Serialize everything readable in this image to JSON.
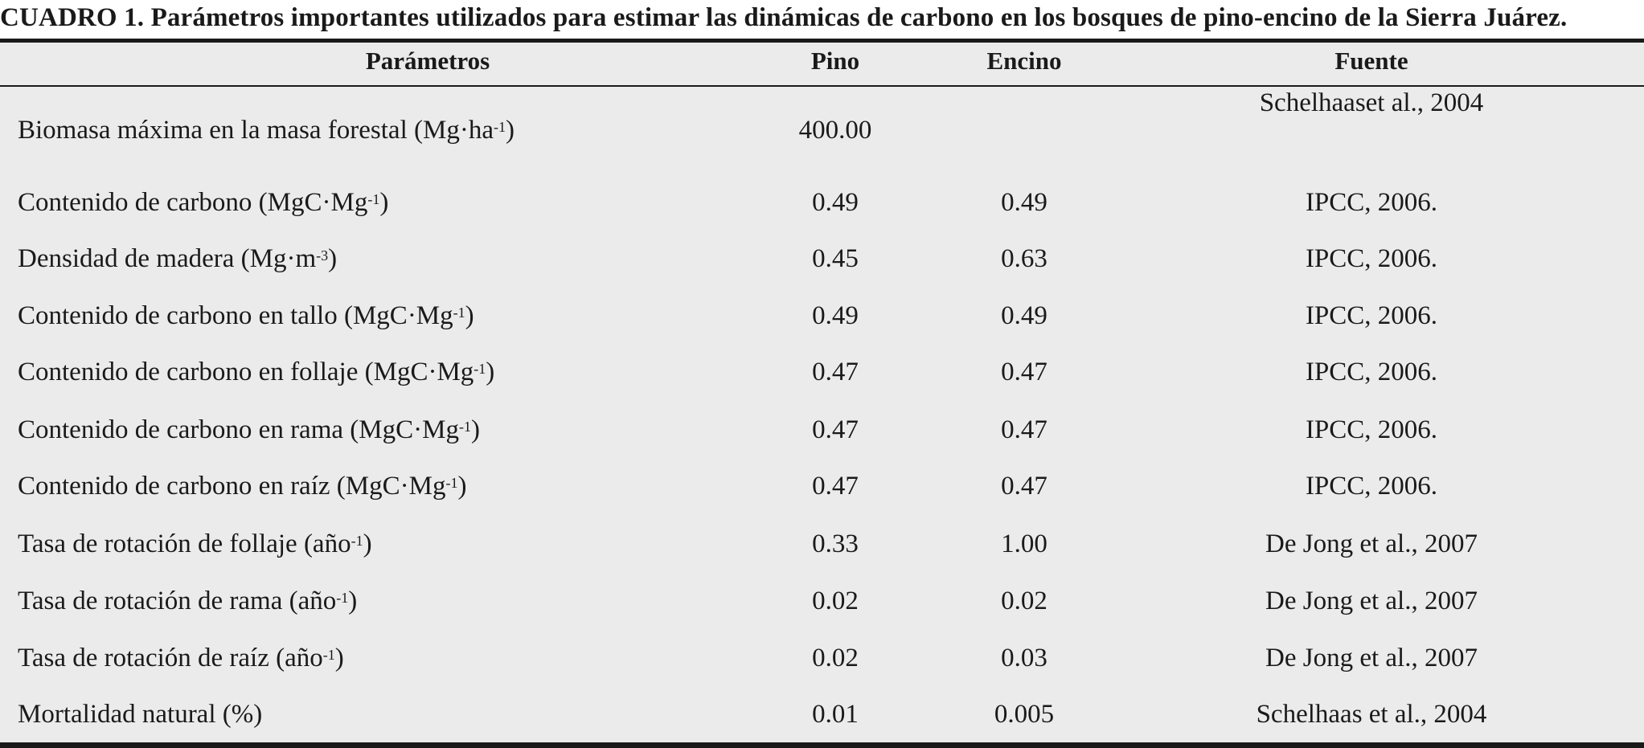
{
  "title": "CUADRO 1. Parámetros importantes utilizados para estimar las dinámicas de carbono en los bosques de pino-encino de la Sierra Juárez.",
  "headers": {
    "param": "Parámetros",
    "pino": "Pino",
    "encino": "Encino",
    "fuente": "Fuente"
  },
  "rows": [
    {
      "label": "Biomasa máxima en la masa forestal (Mg·ha",
      "sup": "-1",
      "tail": ")",
      "pino": "400.00",
      "encino": "",
      "fuente": "Schelhaaset al., 2004"
    },
    {
      "label": "Contenido de carbono (MgC·Mg",
      "sup": "-1",
      "tail": ")",
      "pino": "0.49",
      "encino": "0.49",
      "fuente": "IPCC, 2006."
    },
    {
      "label": "Densidad de madera (Mg·m",
      "sup": "-3",
      "tail": ")",
      "pino": "0.45",
      "encino": "0.63",
      "fuente": "IPCC, 2006."
    },
    {
      "label": "Contenido de carbono en tallo (MgC·Mg",
      "sup": "-1",
      "tail": ")",
      "pino": "0.49",
      "encino": "0.49",
      "fuente": "IPCC, 2006."
    },
    {
      "label": "Contenido de carbono en follaje (MgC·Mg",
      "sup": "-1",
      "tail": ")",
      "pino": "0.47",
      "encino": "0.47",
      "fuente": "IPCC, 2006."
    },
    {
      "label": "Contenido de carbono en rama (MgC·Mg",
      "sup": "-1",
      "tail": ")",
      "pino": "0.47",
      "encino": "0.47",
      "fuente": "IPCC, 2006."
    },
    {
      "label": "Contenido de carbono en raíz (MgC·Mg",
      "sup": "-1",
      "tail": ")",
      "pino": "0.47",
      "encino": "0.47",
      "fuente": "IPCC, 2006."
    },
    {
      "label": "Tasa de rotación de follaje (año",
      "sup": "-1",
      "tail": ")",
      "pino": "0.33",
      "encino": "1.00",
      "fuente": "De Jong et al., 2007"
    },
    {
      "label": "Tasa de rotación de rama (año",
      "sup": "-1",
      "tail": ")",
      "pino": "0.02",
      "encino": "0.02",
      "fuente": "De Jong et al., 2007"
    },
    {
      "label": "Tasa de rotación de raíz (año",
      "sup": "-1",
      "tail": ")",
      "pino": "0.02",
      "encino": "0.03",
      "fuente": "De Jong et al., 2007"
    },
    {
      "label": "Mortalidad natural (%)",
      "sup": "",
      "tail": "",
      "pino": "0.01",
      "encino": "0.005",
      "fuente": "Schelhaas et al., 2004"
    }
  ]
}
